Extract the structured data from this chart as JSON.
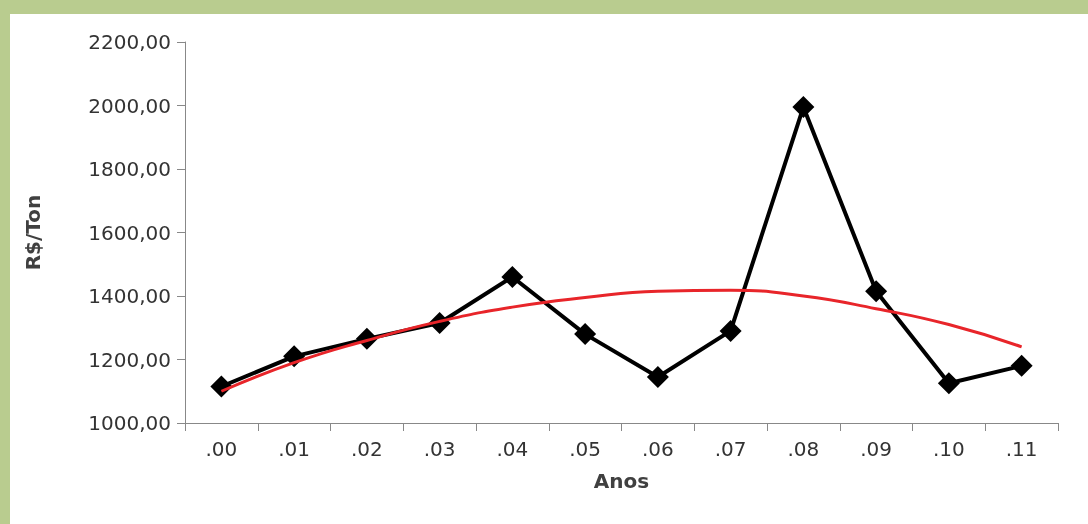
{
  "chart_data": {
    "type": "line",
    "xlabel": "Anos",
    "ylabel": "R$/Ton",
    "categories": [
      ".00",
      ".01",
      ".02",
      ".03",
      ".04",
      ".05",
      ".06",
      ".07",
      ".08",
      ".09",
      ".10",
      ".11"
    ],
    "series": [
      {
        "color": "#000000",
        "marker": "diamond",
        "values": [
          1115,
          1210,
          1265,
          1315,
          1460,
          1280,
          1145,
          1290,
          1995,
          1415,
          1125,
          1180
        ]
      },
      {
        "type": "line",
        "color": "#e8252a",
        "marker": "none",
        "values": [
          1100,
          1190,
          1260,
          1320,
          1365,
          1395,
          1415,
          1418,
          1400,
          1360,
          1310,
          1240
        ]
      }
    ],
    "ylim": [
      1000,
      2200
    ],
    "yticks": [
      {
        "value": 1000,
        "label": "1000,00"
      },
      {
        "value": 1200,
        "label": "1200,00"
      },
      {
        "value": 1400,
        "label": "1400,00"
      },
      {
        "value": 1600,
        "label": "1600,00"
      },
      {
        "value": 1800,
        "label": "1800,00"
      },
      {
        "value": 2000,
        "label": "2000,00"
      },
      {
        "value": 2200,
        "label": "2200,00"
      }
    ],
    "grid": false
  }
}
